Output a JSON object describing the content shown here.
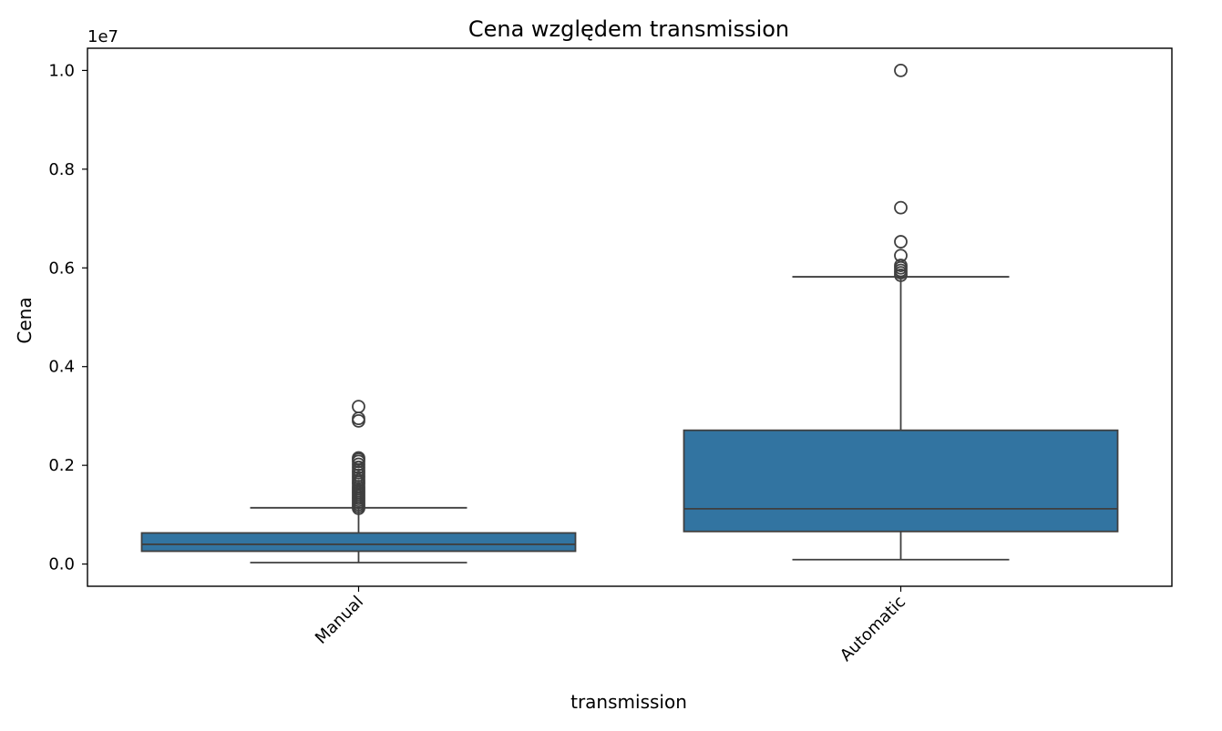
{
  "chart_data": {
    "type": "box",
    "title": "Cena względem transmission",
    "xlabel": "transmission",
    "ylabel": "Cena",
    "y_offset_label": "1e7",
    "yticks": [
      "0.0",
      "0.2",
      "0.4",
      "0.6",
      "0.8",
      "1.0"
    ],
    "ytick_values": [
      0,
      0.2,
      0.4,
      0.6,
      0.8,
      1.0
    ],
    "ylim": [
      -0.045,
      1.045
    ],
    "categories": [
      "Manual",
      "Automatic"
    ],
    "box_color": "#3274a1",
    "line_color": "#3f3f3f",
    "grid": false,
    "boxes": [
      {
        "category": "Manual",
        "whisker_low": 0.003,
        "q1": 0.026,
        "median": 0.04,
        "q3": 0.063,
        "whisker_high": 0.114,
        "outliers": [
          0.113,
          0.117,
          0.121,
          0.125,
          0.129,
          0.133,
          0.137,
          0.141,
          0.145,
          0.149,
          0.153,
          0.157,
          0.162,
          0.166,
          0.17,
          0.175,
          0.18,
          0.185,
          0.19,
          0.196,
          0.202,
          0.208,
          0.212,
          0.215,
          0.29,
          0.295,
          0.319
        ]
      },
      {
        "category": "Automatic",
        "whisker_low": 0.009,
        "q1": 0.066,
        "median": 0.112,
        "q3": 0.271,
        "whisker_high": 0.582,
        "outliers": [
          0.585,
          0.59,
          0.595,
          0.6,
          0.605,
          0.625,
          0.653,
          0.722,
          1.0
        ]
      }
    ]
  }
}
